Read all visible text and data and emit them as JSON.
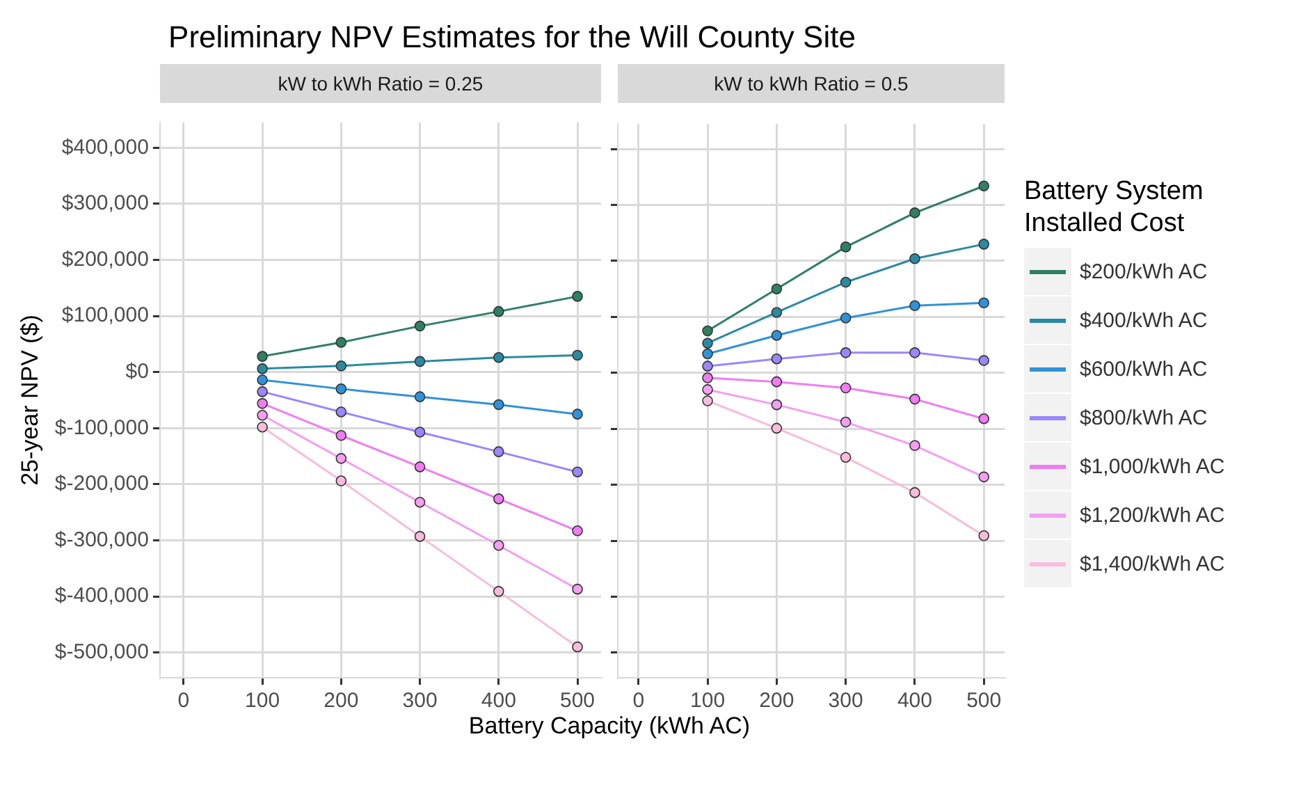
{
  "chart_data": [
    {
      "type": "line",
      "title": "Preliminary NPV Estimates for the Will County Site",
      "subtitle": "kW to kWh Ratio = 0.25",
      "xlabel": "Battery Capacity (kWh AC)",
      "ylabel": "25-year NPV ($)",
      "x": [
        100,
        200,
        300,
        400,
        500
      ],
      "xlim": [
        -30,
        530
      ],
      "xticks": [
        0,
        100,
        200,
        300,
        400,
        500
      ],
      "ylim": [
        -545000,
        445000
      ],
      "yticks": [
        {
          "value": -500000,
          "label": "$-500,000"
        },
        {
          "value": -400000,
          "label": "$-400,000"
        },
        {
          "value": -300000,
          "label": "$-300,000"
        },
        {
          "value": -200000,
          "label": "$-200,000"
        },
        {
          "value": -100000,
          "label": "$-100,000"
        },
        {
          "value": 0,
          "label": "$0"
        },
        {
          "value": 100000,
          "label": "$100,000"
        },
        {
          "value": 200000,
          "label": "$200,000"
        },
        {
          "value": 300000,
          "label": "$300,000"
        },
        {
          "value": 400000,
          "label": "$400,000"
        }
      ],
      "grid": true,
      "marker": "circle",
      "legend": false,
      "series": [
        {
          "color": "#2e8062",
          "values": [
            28000,
            53000,
            82000,
            108000,
            135000
          ]
        },
        {
          "color": "#2a8aa2",
          "values": [
            6000,
            11000,
            19000,
            26000,
            30000
          ]
        },
        {
          "color": "#2f92d8",
          "values": [
            -14000,
            -30000,
            -44000,
            -58000,
            -75000
          ]
        },
        {
          "color": "#9a86ff",
          "values": [
            -35000,
            -71000,
            -107000,
            -142000,
            -178000
          ]
        },
        {
          "color": "#f07cf2",
          "values": [
            -56000,
            -113000,
            -169000,
            -226000,
            -283000
          ]
        },
        {
          "color": "#f59ef2",
          "values": [
            -77000,
            -154000,
            -232000,
            -309000,
            -387000
          ]
        },
        {
          "color": "#f7bcdc",
          "values": [
            -98000,
            -194000,
            -293000,
            -391000,
            -490000
          ]
        }
      ]
    },
    {
      "type": "line",
      "subtitle": "kW to kWh Ratio = 0.5",
      "legend_title": "Battery System Installed Cost",
      "x": [
        100,
        200,
        300,
        400,
        500
      ],
      "xlim": [
        -30,
        530
      ],
      "xticks": [
        0,
        100,
        200,
        300,
        400,
        500
      ],
      "ylim": [
        -545000,
        445000
      ],
      "yticks": [
        -500000,
        -400000,
        -300000,
        -200000,
        -100000,
        0,
        100000,
        200000,
        300000,
        400000
      ],
      "tick_labels": "x",
      "grid": true,
      "marker": "circle",
      "legend": "right",
      "series": [
        {
          "name": "$200/kWh AC",
          "color": "#2e8062",
          "values": [
            75000,
            150000,
            225000,
            286000,
            334000
          ]
        },
        {
          "name": "$400/kWh AC",
          "color": "#2a8aa2",
          "values": [
            53000,
            108000,
            162000,
            204000,
            230000
          ]
        },
        {
          "name": "$600/kWh AC",
          "color": "#2f92d8",
          "values": [
            34000,
            67000,
            98000,
            120000,
            125000
          ]
        },
        {
          "name": "$800/kWh AC",
          "color": "#9a86ff",
          "values": [
            12000,
            25000,
            36000,
            36000,
            22000
          ]
        },
        {
          "name": "$1,000/kWh AC",
          "color": "#f07cf2",
          "values": [
            -9000,
            -16000,
            -27000,
            -47000,
            -82000
          ]
        },
        {
          "name": "$1,200/kWh AC",
          "color": "#f59ef2",
          "values": [
            -30000,
            -57000,
            -88000,
            -130000,
            -186000
          ]
        },
        {
          "name": "$1,400/kWh AC",
          "color": "#f7bcdc",
          "values": [
            -50000,
            -99000,
            -151000,
            -214000,
            -291000
          ]
        }
      ]
    }
  ]
}
